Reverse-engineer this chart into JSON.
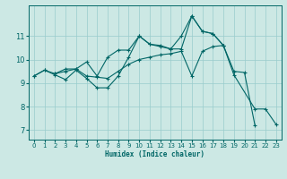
{
  "xlabel": "Humidex (Indice chaleur)",
  "bg_color": "#cce8e4",
  "grid_color": "#99cccc",
  "line_color": "#006666",
  "xlim": [
    -0.5,
    23.5
  ],
  "ylim": [
    6.6,
    12.3
  ],
  "yticks": [
    7,
    8,
    9,
    10,
    11
  ],
  "xticks": [
    0,
    1,
    2,
    3,
    4,
    5,
    6,
    7,
    8,
    9,
    10,
    11,
    12,
    13,
    14,
    15,
    16,
    17,
    18,
    19,
    20,
    21,
    22,
    23
  ],
  "series": [
    {
      "x": [
        0,
        1,
        2,
        3,
        4,
        5,
        6,
        7,
        8,
        9,
        10,
        11,
        12,
        13,
        14,
        15,
        16,
        17,
        18,
        19,
        20,
        21,
        22,
        23
      ],
      "y": [
        9.3,
        9.55,
        9.4,
        9.5,
        9.6,
        9.3,
        9.25,
        9.2,
        9.5,
        9.8,
        10.0,
        10.1,
        10.2,
        10.25,
        10.35,
        9.3,
        10.35,
        10.55,
        10.6,
        9.5,
        9.45,
        7.2,
        null,
        null
      ]
    },
    {
      "x": [
        0,
        1,
        2,
        3,
        4,
        5,
        6,
        7,
        8,
        9,
        10,
        11,
        12,
        13,
        14,
        15,
        16,
        17,
        18,
        19,
        21,
        22,
        23
      ],
      "y": [
        9.3,
        9.55,
        9.35,
        9.15,
        9.55,
        9.2,
        8.8,
        8.8,
        9.3,
        10.1,
        11.0,
        10.65,
        10.6,
        10.45,
        11.0,
        11.85,
        11.2,
        11.1,
        10.6,
        9.35,
        7.9,
        7.9,
        7.25
      ]
    },
    {
      "x": [
        2,
        3,
        4,
        5,
        6,
        7,
        8,
        9,
        10,
        11,
        12,
        13,
        14,
        15,
        16,
        17,
        18
      ],
      "y": [
        9.4,
        9.6,
        9.6,
        9.9,
        9.3,
        10.1,
        10.4,
        10.4,
        11.0,
        10.65,
        10.55,
        10.45,
        10.45,
        11.85,
        11.2,
        11.1,
        10.6
      ]
    }
  ]
}
